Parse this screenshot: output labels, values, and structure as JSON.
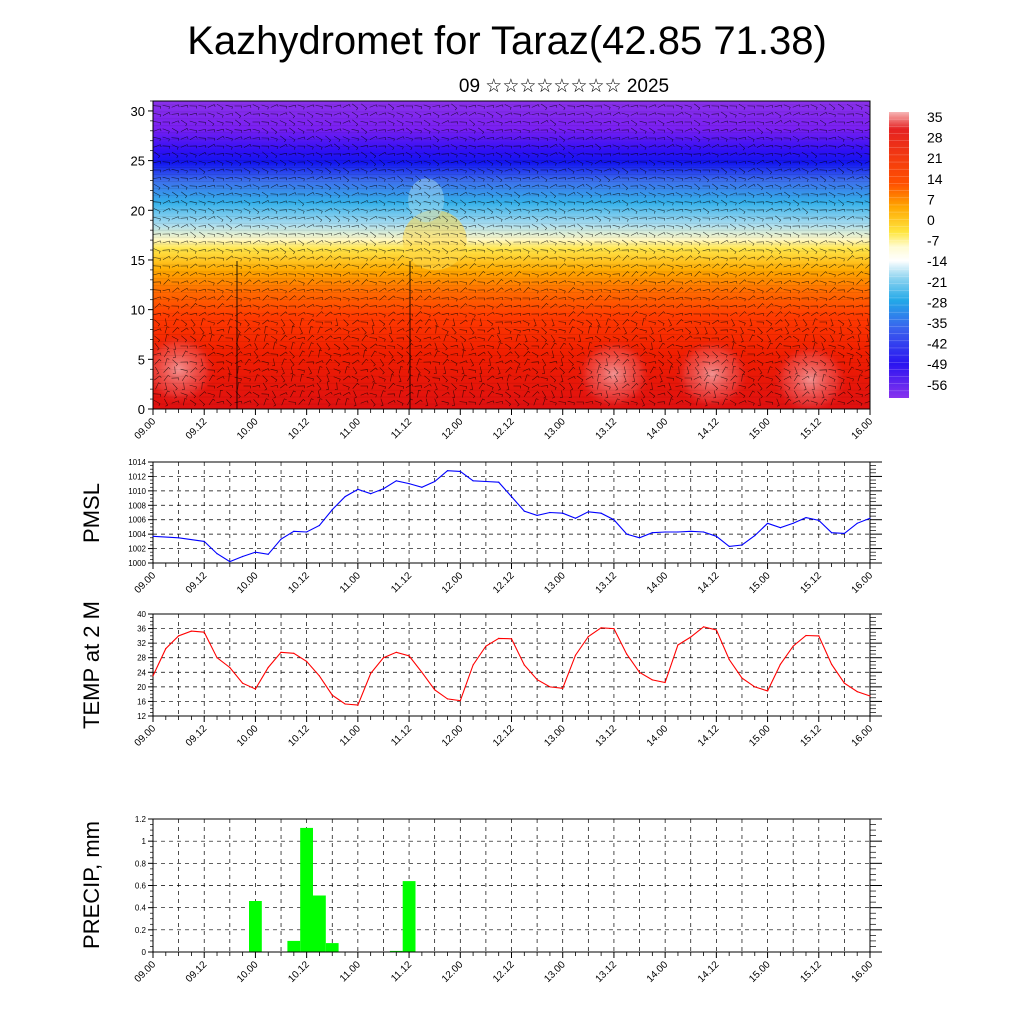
{
  "title": "Kazhydromet for Taraz(42.85 71.38)",
  "subtitle": "09 ☆☆☆☆☆☆☆☆ 2025",
  "x_tick_labels": [
    "09.00",
    "09.12",
    "10.00",
    "10.12",
    "11.00",
    "11.12",
    "12.00",
    "12.12",
    "13.00",
    "13.12",
    "14.00",
    "14.12",
    "15.00",
    "15.12",
    "16.00"
  ],
  "colorbar": {
    "labels": [
      "35",
      "28",
      "21",
      "14",
      "7",
      "0",
      "-7",
      "-14",
      "-21",
      "-28",
      "-35",
      "-42",
      "-49",
      "-56"
    ]
  },
  "chart_data": [
    {
      "type": "heatmap",
      "title": "Kazhydromet for Taraz(42.85 71.38)",
      "subtitle": "09 ☆☆☆☆☆☆☆☆ 2025",
      "x_range_hours": [
        0,
        168
      ],
      "ylim": [
        0,
        31
      ],
      "yticks": [
        0,
        5,
        10,
        15,
        20,
        25,
        30
      ],
      "colorbar_range": [
        -56,
        35
      ],
      "overlay": "wind vectors",
      "temperature_profile": [
        {
          "y": 0,
          "value": 30
        },
        {
          "y": 5,
          "value": 22
        },
        {
          "y": 10,
          "value": 12
        },
        {
          "y": 13,
          "value": 4
        },
        {
          "y": 15,
          "value": -4
        },
        {
          "y": 17,
          "value": -14
        },
        {
          "y": 20,
          "value": -28
        },
        {
          "y": 23,
          "value": -42
        },
        {
          "y": 25,
          "value": -56
        },
        {
          "y": 27,
          "value": -52
        },
        {
          "y": 31,
          "value": -50
        }
      ]
    },
    {
      "type": "line",
      "ylabel": "PMSL",
      "ylim": [
        1000,
        1014
      ],
      "yticks": [
        1000,
        1002,
        1004,
        1006,
        1008,
        1010,
        1012,
        1014
      ],
      "color": "#0000ff",
      "x_hours": [
        0,
        6,
        12,
        15,
        18,
        21,
        24,
        27,
        30,
        33,
        36,
        39,
        42,
        45,
        48,
        51,
        54,
        57,
        60,
        63,
        66,
        69,
        72,
        75,
        78,
        81,
        84,
        87,
        90,
        93,
        96,
        99,
        102,
        105,
        108,
        111,
        114,
        117,
        120,
        123,
        126,
        129,
        132,
        135,
        138,
        141,
        144,
        147,
        150,
        153,
        156,
        159,
        162,
        165,
        168
      ],
      "values": [
        1003.7,
        1003.5,
        1003.0,
        1001.3,
        1000.2,
        1000.9,
        1001.5,
        1001.2,
        1003.3,
        1004.4,
        1004.3,
        1005.2,
        1007.4,
        1009.2,
        1010.2,
        1009.6,
        1010.3,
        1011.4,
        1011.0,
        1010.5,
        1011.3,
        1012.8,
        1012.7,
        1011.4,
        1011.3,
        1011.2,
        1009.2,
        1007.2,
        1006.6,
        1007.0,
        1006.9,
        1006.2,
        1007.1,
        1006.9,
        1006.0,
        1004.0,
        1003.5,
        1004.2,
        1004.3,
        1004.3,
        1004.4,
        1004.3,
        1003.7,
        1002.3,
        1002.5,
        1003.8,
        1005.5,
        1004.9,
        1005.5,
        1006.3,
        1005.9,
        1004.2,
        1004.1,
        1005.5,
        1006.2
      ]
    },
    {
      "type": "line",
      "ylabel": "TEMP at 2 M",
      "ylim": [
        12,
        40
      ],
      "yticks": [
        12,
        16,
        20,
        24,
        28,
        32,
        36,
        40
      ],
      "color": "#ff0000",
      "x_hours": [
        0,
        3,
        6,
        9,
        12,
        15,
        18,
        21,
        24,
        27,
        30,
        33,
        36,
        39,
        42,
        45,
        48,
        51,
        54,
        57,
        60,
        63,
        66,
        69,
        72,
        75,
        78,
        81,
        84,
        87,
        90,
        93,
        96,
        99,
        102,
        105,
        108,
        111,
        114,
        117,
        120,
        123,
        126,
        129,
        132,
        135,
        138,
        141,
        144,
        147,
        150,
        153,
        156,
        159,
        162,
        165,
        168
      ],
      "values": [
        23,
        30.5,
        34,
        35.3,
        35,
        28,
        25.3,
        21,
        19.4,
        25.3,
        29.5,
        29.2,
        27,
        23,
        17.7,
        15.3,
        15,
        23.7,
        28,
        29.5,
        28.5,
        24,
        19.2,
        16.7,
        16.2,
        26,
        31.2,
        33.3,
        33.2,
        26,
        22,
        20,
        19.6,
        28.7,
        33.8,
        36.2,
        36,
        29,
        24,
        21.9,
        21.2,
        31.5,
        33.7,
        36.5,
        35.6,
        27.5,
        22.4,
        20,
        18.9,
        26.2,
        31.2,
        34.1,
        34,
        26.2,
        21,
        18.7,
        17.5
      ]
    },
    {
      "type": "bar",
      "ylabel": "PRECIP, mm",
      "ylim": [
        0,
        1.2
      ],
      "yticks": [
        0.0,
        0.2,
        0.4,
        0.6,
        0.8,
        1.0,
        1.2
      ],
      "color": "#00ff00",
      "bars": [
        {
          "x": 24,
          "value": 0.46
        },
        {
          "x": 33,
          "value": 0.1
        },
        {
          "x": 36,
          "value": 1.12
        },
        {
          "x": 39,
          "value": 0.51
        },
        {
          "x": 42,
          "value": 0.08
        },
        {
          "x": 57,
          "value": 0.01
        },
        {
          "x": 60,
          "value": 0.64
        }
      ]
    }
  ]
}
